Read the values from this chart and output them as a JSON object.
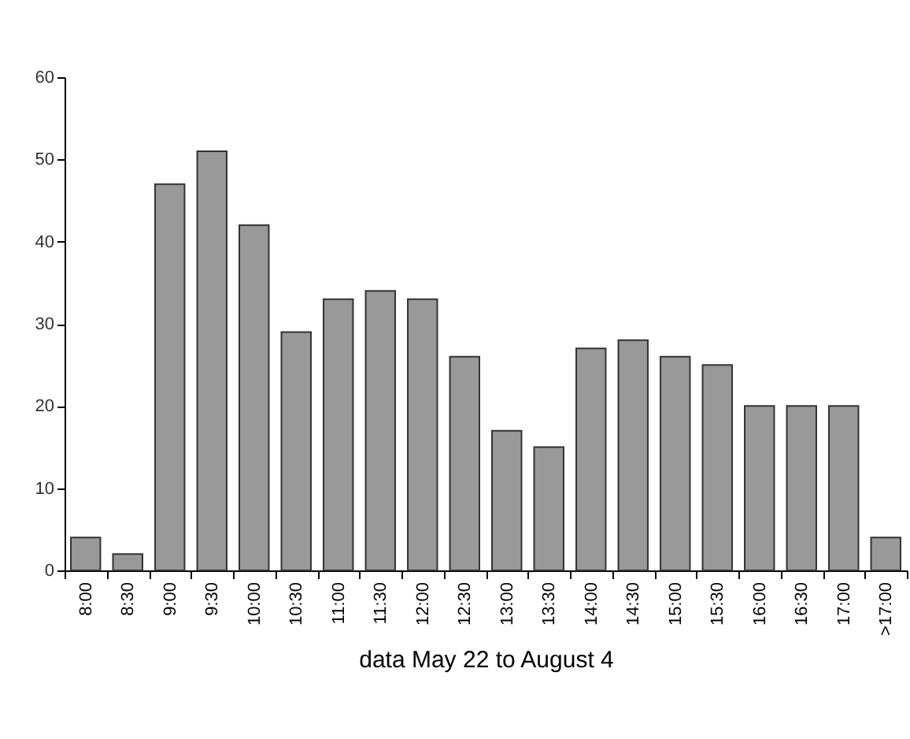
{
  "chart_data": {
    "type": "bar",
    "xlabel": "data May 22 to August 4",
    "categories": [
      "8:00",
      "8:30",
      "9:00",
      "9:30",
      "10:00",
      "10:30",
      "11:00",
      "11:30",
      "12:00",
      "12:30",
      "13:00",
      "13:30",
      "14:00",
      "14:30",
      "15:00",
      "15:30",
      "16:00",
      "16:30",
      "17:00",
      ">17:00"
    ],
    "values": [
      4,
      2,
      47,
      51,
      42,
      29,
      33,
      34,
      33,
      26,
      17,
      15,
      27,
      28,
      26,
      25,
      20,
      20,
      20,
      4
    ],
    "color": "#999999",
    "ylim": [
      0,
      60
    ],
    "yticks": [
      0,
      10,
      20,
      30,
      40,
      50,
      60
    ],
    "grid": false
  }
}
